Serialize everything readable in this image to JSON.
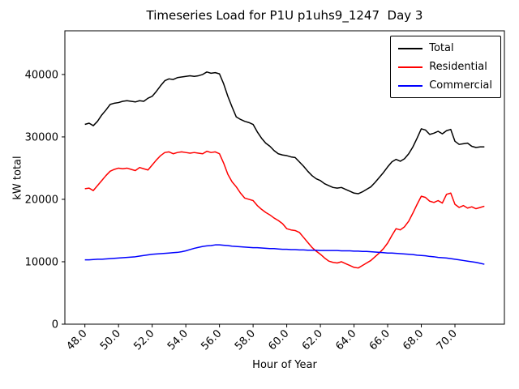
{
  "figure": {
    "title": "Timeseries Load for P1U p1uhs9_1247  Day 3",
    "xlabel": "Hour of Year",
    "ylabel": "kW total"
  },
  "chart_data": {
    "type": "line",
    "title": "Timeseries Load for P1U p1uhs9_1247  Day 3",
    "xlabel": "Hour of Year",
    "ylabel": "kW total",
    "legend_position": "upper right",
    "grid": false,
    "x_start": 48.0,
    "x_step": 0.25,
    "xlim": [
      46.81,
      72.94
    ],
    "ylim": [
      0,
      47000
    ],
    "xticks": [
      48,
      50,
      52,
      54,
      56,
      58,
      60,
      62,
      64,
      66,
      68,
      70
    ],
    "xtick_labels": [
      "48.0",
      "50.0",
      "52.0",
      "54.0",
      "56.0",
      "58.0",
      "60.0",
      "62.0",
      "64.0",
      "66.0",
      "68.0",
      "70.0"
    ],
    "yticks": [
      0,
      10000,
      20000,
      30000,
      40000
    ],
    "ytick_labels": [
      "0",
      "10000",
      "20000",
      "30000",
      "40000"
    ],
    "series": [
      {
        "name": "Total",
        "color": "#000000",
        "values": [
          32000,
          32200,
          31800,
          32500,
          33500,
          34300,
          35200,
          35400,
          35500,
          35700,
          35800,
          35700,
          35600,
          35800,
          35700,
          36200,
          36500,
          37300,
          38200,
          39000,
          39300,
          39200,
          39500,
          39600,
          39700,
          39800,
          39700,
          39800,
          40000,
          40400,
          40200,
          40300,
          40100,
          38500,
          36500,
          34800,
          33200,
          32800,
          32500,
          32300,
          32000,
          30800,
          29800,
          29000,
          28500,
          27800,
          27300,
          27100,
          27000,
          26800,
          26700,
          26000,
          25300,
          24500,
          23800,
          23300,
          23000,
          22500,
          22200,
          21900,
          21800,
          21900,
          21600,
          21300,
          21000,
          20900,
          21200,
          21600,
          22000,
          22700,
          23500,
          24300,
          25200,
          26000,
          26400,
          26100,
          26500,
          27300,
          28400,
          29800,
          31300,
          31100,
          30400,
          30600,
          30900,
          30500,
          31000,
          31200,
          29300,
          28800,
          28900,
          29000,
          28500,
          28300,
          28400,
          28400
        ]
      },
      {
        "name": "Residential",
        "color": "#ff0000",
        "values": [
          21700,
          21800,
          21400,
          22200,
          23000,
          23800,
          24500,
          24800,
          25000,
          24900,
          25000,
          24800,
          24600,
          25100,
          24900,
          24700,
          25500,
          26300,
          27000,
          27500,
          27600,
          27300,
          27500,
          27600,
          27500,
          27400,
          27500,
          27400,
          27300,
          27700,
          27500,
          27600,
          27300,
          25800,
          24000,
          22800,
          22000,
          21000,
          20200,
          20000,
          19800,
          19000,
          18400,
          17900,
          17500,
          17000,
          16600,
          16100,
          15300,
          15100,
          15000,
          14700,
          13900,
          13100,
          12300,
          11700,
          11200,
          10600,
          10100,
          9900,
          9800,
          10000,
          9700,
          9400,
          9100,
          9000,
          9400,
          9800,
          10200,
          10800,
          11400,
          12100,
          13000,
          14200,
          15300,
          15100,
          15600,
          16500,
          17800,
          19200,
          20500,
          20300,
          19700,
          19500,
          19800,
          19400,
          20800,
          21000,
          19200,
          18700,
          19000,
          18600,
          18800,
          18500,
          18700,
          18900
        ]
      },
      {
        "name": "Commercial",
        "color": "#0000ff",
        "values": [
          10300,
          10300,
          10350,
          10400,
          10400,
          10450,
          10500,
          10550,
          10600,
          10650,
          10700,
          10750,
          10800,
          10900,
          11000,
          11100,
          11200,
          11250,
          11300,
          11350,
          11400,
          11450,
          11500,
          11600,
          11750,
          11950,
          12150,
          12300,
          12450,
          12550,
          12600,
          12700,
          12700,
          12650,
          12600,
          12500,
          12450,
          12400,
          12350,
          12300,
          12250,
          12250,
          12200,
          12150,
          12100,
          12100,
          12050,
          12000,
          12000,
          11950,
          11950,
          11900,
          11900,
          11850,
          11850,
          11850,
          11800,
          11800,
          11800,
          11800,
          11800,
          11750,
          11750,
          11750,
          11700,
          11700,
          11650,
          11650,
          11600,
          11550,
          11500,
          11450,
          11400,
          11400,
          11350,
          11300,
          11250,
          11200,
          11150,
          11050,
          11000,
          10950,
          10850,
          10800,
          10700,
          10650,
          10600,
          10500,
          10400,
          10300,
          10200,
          10100,
          10000,
          9900,
          9750,
          9600
        ]
      }
    ]
  }
}
